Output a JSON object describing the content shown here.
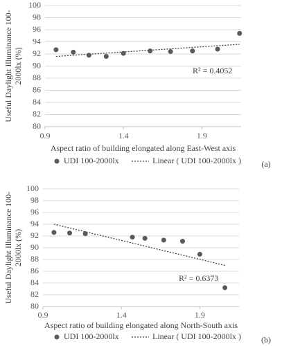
{
  "chart_data": [
    {
      "type": "scatter",
      "ylabel": [
        "Useful Daylight Illuminance 100-",
        "2000lx (%)"
      ],
      "xlabel": "Aspect ratio of building elongated along East-West axis",
      "panel": "(a)",
      "xlim": [
        0.9,
        2.15
      ],
      "xticks": [
        0.9,
        1.4,
        1.9
      ],
      "ylim": [
        80,
        100
      ],
      "yticks": [
        80,
        82,
        84,
        86,
        88,
        90,
        92,
        94,
        96,
        98,
        100
      ],
      "grid": true,
      "series": [
        {
          "name": "UDI 100-2000lx",
          "color": "#595959",
          "x": [
            0.97,
            1.08,
            1.18,
            1.29,
            1.4,
            1.57,
            1.7,
            1.84,
            2.0,
            2.14
          ],
          "values": [
            92.7,
            92.3,
            91.8,
            91.6,
            92.1,
            92.5,
            92.4,
            92.5,
            92.8,
            95.4
          ]
        }
      ],
      "trendline": {
        "name": "Linear ( UDI 100-2000lx )",
        "color": "#404040",
        "x": [
          0.97,
          2.14
        ],
        "y": [
          91.6,
          93.6
        ]
      },
      "annotation": "R² = 0.4052"
    },
    {
      "type": "scatter",
      "ylabel": [
        "Useful Daylight Illuminance 100-",
        "2000lx (%)"
      ],
      "xlabel": "Aspect ratio of building elongated along North-South axis",
      "panel": "(b)",
      "xlim": [
        0.9,
        2.15
      ],
      "xticks": [
        0.9,
        1.4,
        1.9
      ],
      "ylim": [
        80,
        100
      ],
      "yticks": [
        80,
        82,
        84,
        86,
        88,
        90,
        92,
        94,
        96,
        98,
        100
      ],
      "grid": true,
      "series": [
        {
          "name": "UDI 100-2000lx",
          "color": "#595959",
          "x": [
            0.97,
            1.07,
            1.17,
            1.47,
            1.55,
            1.67,
            1.79,
            1.9,
            2.06
          ],
          "values": [
            92.6,
            92.5,
            92.4,
            91.8,
            91.6,
            91.3,
            91.1,
            88.9,
            83.2
          ]
        }
      ],
      "trendline": {
        "name": "Linear ( UDI 100-2000lx )",
        "color": "#404040",
        "x": [
          0.97,
          2.06
        ],
        "y": [
          94.0,
          87.0
        ]
      },
      "annotation": "R² = 0.6373"
    }
  ]
}
